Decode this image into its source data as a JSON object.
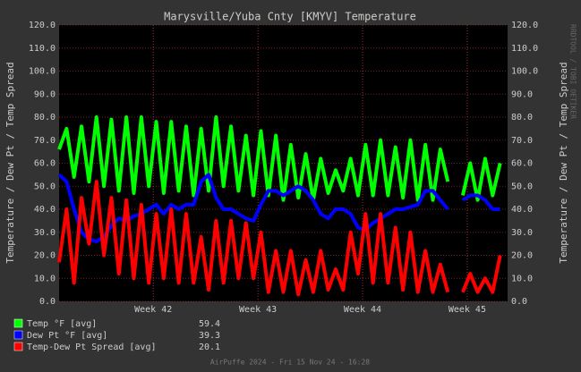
{
  "chart_data": {
    "type": "line",
    "title": "Marysville/Yuba Cnty [KMYV] Temperature",
    "y_label": "Temperature / Dew Pt / Temp Spread",
    "footer": "AirPuffe 2024 - Fri 15 Nov 24 - 16:28",
    "watermark": "RRDTOOL / TOBI OETIKER",
    "grid": true,
    "xlim": [
      0,
      30
    ],
    "xticks": [
      {
        "value": 6.3,
        "label": "Week 42"
      },
      {
        "value": 13.3,
        "label": "Week 43"
      },
      {
        "value": 20.3,
        "label": "Week 44"
      },
      {
        "value": 27.3,
        "label": "Week 45"
      }
    ],
    "ylim": [
      0,
      120
    ],
    "yticks": [
      {
        "value": 0,
        "label": "0.0"
      },
      {
        "value": 10,
        "label": "10.0"
      },
      {
        "value": 20,
        "label": "20.0"
      },
      {
        "value": 30,
        "label": "30.0"
      },
      {
        "value": 40,
        "label": "40.0"
      },
      {
        "value": 50,
        "label": "50.0"
      },
      {
        "value": 60,
        "label": "60.0"
      },
      {
        "value": 70,
        "label": "70.0"
      },
      {
        "value": 80,
        "label": "80.0"
      },
      {
        "value": 90,
        "label": "90.0"
      },
      {
        "value": 100,
        "label": "100.0"
      },
      {
        "value": 110,
        "label": "110.0"
      },
      {
        "value": 120,
        "label": "120.0"
      }
    ],
    "x": [
      0,
      0.5,
      1,
      1.5,
      2,
      2.5,
      3,
      3.5,
      4,
      4.5,
      5,
      5.5,
      6,
      6.5,
      7,
      7.5,
      8,
      8.5,
      9,
      9.5,
      10,
      10.5,
      11,
      11.5,
      12,
      12.5,
      13,
      13.5,
      14,
      14.5,
      15,
      15.5,
      16,
      16.5,
      17,
      17.5,
      18,
      18.5,
      19,
      19.5,
      20,
      20.5,
      21,
      21.5,
      22,
      22.5,
      23,
      23.5,
      24,
      24.5,
      25,
      25.5,
      26,
      26.5,
      27,
      27.5,
      28,
      28.5,
      29,
      29.5
    ],
    "series": [
      {
        "name": "Temp °F [avg]",
        "color": "#00ff00",
        "avg": 59.4,
        "values": [
          66,
          75,
          54,
          76,
          52,
          80,
          50,
          79,
          48,
          80,
          47,
          80,
          50,
          78,
          47,
          78,
          48,
          76,
          46,
          75,
          48,
          80,
          50,
          76,
          48,
          72,
          46,
          74,
          46,
          72,
          44,
          68,
          45,
          64,
          44,
          62,
          47,
          57,
          48,
          62,
          46,
          68,
          46,
          70,
          46,
          67,
          45,
          70,
          44,
          68,
          44,
          66,
          52,
          null,
          46,
          60,
          44,
          62,
          46,
          60
        ]
      },
      {
        "name": "Dew Pt °F [avg]",
        "color": "#0000ff",
        "avg": 39.3,
        "values": [
          55,
          52,
          40,
          30,
          27,
          26,
          28,
          33,
          36,
          35,
          37,
          38,
          40,
          42,
          38,
          42,
          40,
          42,
          42,
          52,
          55,
          45,
          40,
          40,
          38,
          36,
          35,
          42,
          48,
          48,
          46,
          48,
          50,
          48,
          44,
          38,
          36,
          40,
          40,
          38,
          32,
          31,
          34,
          36,
          38,
          40,
          40,
          41,
          42,
          48,
          48,
          44,
          40,
          null,
          44,
          46,
          46,
          44,
          40,
          40
        ]
      },
      {
        "name": "Temp-Dew Pt Spread [avg]",
        "color": "#ff0000",
        "avg": 20.1,
        "values": [
          17,
          40,
          8,
          45,
          25,
          52,
          20,
          45,
          12,
          44,
          10,
          42,
          8,
          38,
          10,
          40,
          8,
          38,
          8,
          28,
          5,
          35,
          8,
          35,
          10,
          34,
          10,
          30,
          4,
          22,
          4,
          22,
          3,
          18,
          4,
          22,
          5,
          14,
          5,
          30,
          12,
          38,
          8,
          38,
          8,
          32,
          5,
          30,
          4,
          22,
          4,
          16,
          4,
          null,
          4,
          12,
          4,
          10,
          4,
          20
        ]
      }
    ]
  }
}
